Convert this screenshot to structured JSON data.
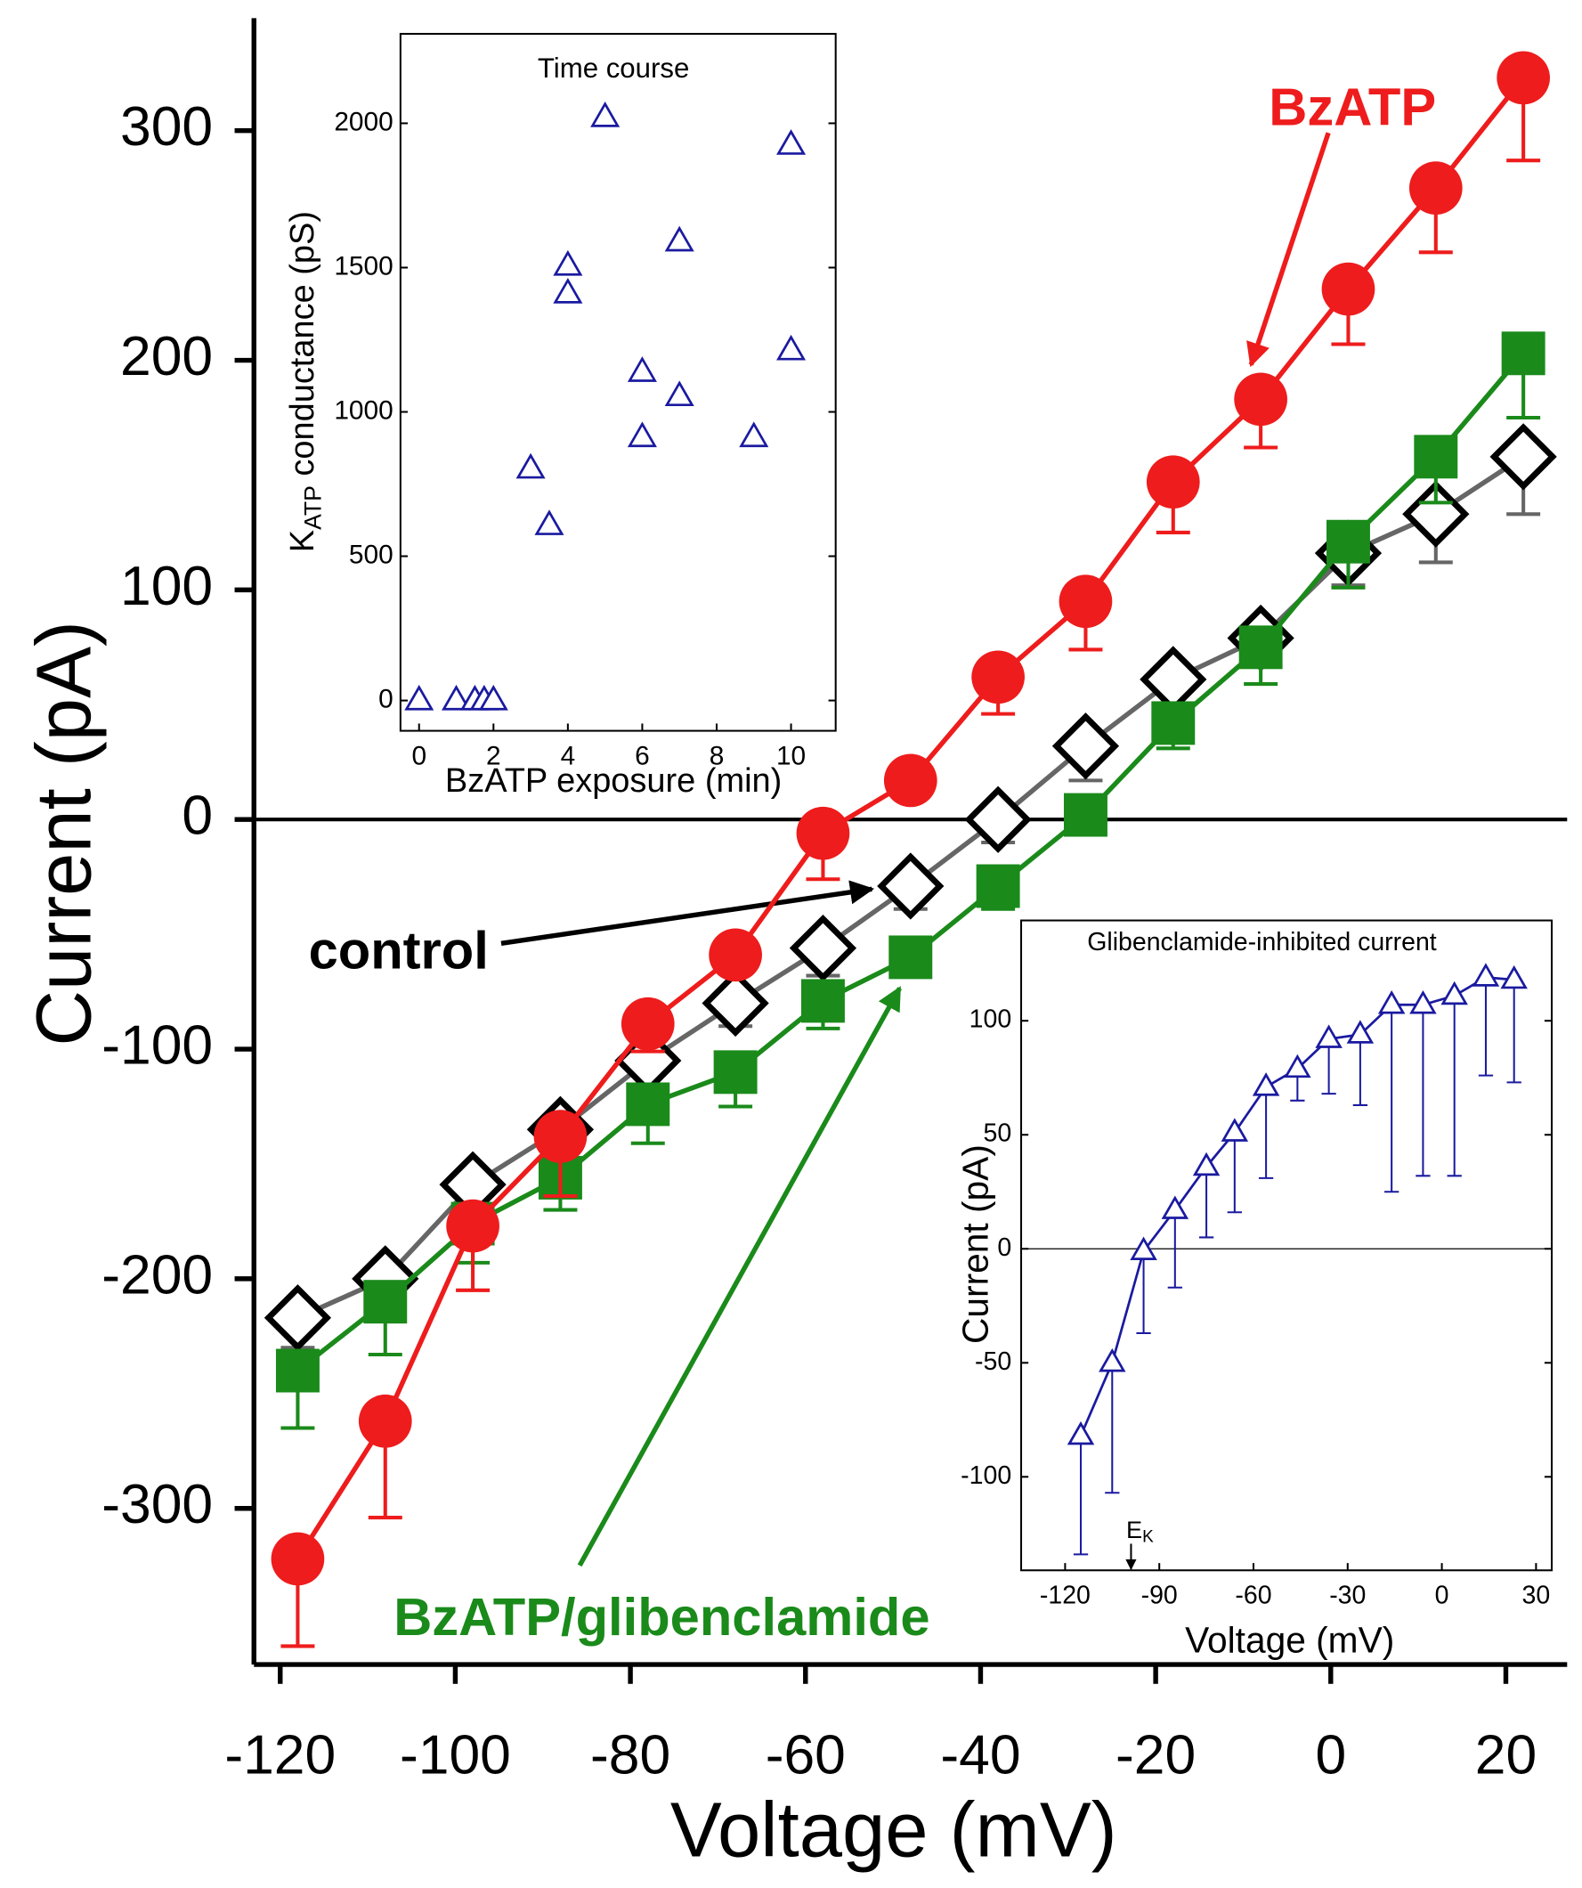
{
  "chart_data": [
    {
      "type": "line",
      "xlabel": "Voltage (mV)",
      "ylabel": "Current (pA)",
      "x": [
        -118,
        -108,
        -98,
        -88,
        -78,
        -68,
        -58,
        -48,
        -38,
        -28,
        -18,
        -8,
        2,
        12,
        22
      ],
      "xlim": [
        -123,
        27
      ],
      "ylim": [
        -368,
        349
      ],
      "xticks": [
        -120,
        -100,
        -80,
        -60,
        -40,
        -20,
        0,
        20
      ],
      "yticks": [
        -300,
        -200,
        -100,
        0,
        100,
        200,
        300
      ],
      "series": [
        {
          "name": "BzATP",
          "color": "#ee1c1c",
          "line_color": "#ee1c1c",
          "marker": "circle",
          "values": [
            -322,
            -262,
            -177,
            -138,
            -89,
            -59,
            -6,
            17,
            62,
            95,
            147,
            183,
            231,
            275,
            323
          ],
          "errors": [
            38,
            42,
            28,
            26,
            12,
            5,
            20,
            8,
            16,
            21,
            22,
            21,
            24,
            28,
            36
          ]
        },
        {
          "name": "control",
          "color": "#000000",
          "line_color": "#666666",
          "marker": "diamond",
          "values": [
            -217,
            -200,
            -159,
            -135,
            -105,
            -80,
            -56,
            -29,
            0,
            32,
            61,
            79,
            116,
            133,
            158
          ],
          "errors": [
            13,
            12,
            15,
            14,
            12,
            10,
            12,
            10,
            10,
            15,
            15,
            12,
            14,
            21,
            25
          ]
        },
        {
          "name": "BzATP/glibenclamide",
          "color": "#1a8a1a",
          "line_color": "#1a8a1a",
          "marker": "square",
          "values": [
            -240,
            -210,
            -176,
            -156,
            -124,
            -110,
            -79,
            -60,
            -29,
            2,
            42,
            75,
            121,
            158,
            203
          ],
          "errors": [
            25,
            23,
            17,
            14,
            17,
            15,
            12,
            5,
            10,
            3,
            11,
            16,
            20,
            20,
            28
          ]
        }
      ]
    },
    {
      "type": "scatter",
      "title": "Time course",
      "xlabel": "BzATP exposure (min)",
      "ylabel": {
        "main": "K",
        "sub": "ATP",
        "rest": " conductance (pS)"
      },
      "x": [
        0,
        1,
        1.5,
        1.75,
        2,
        3,
        3.5,
        4,
        4,
        5,
        6,
        6,
        7,
        7,
        9,
        10,
        10
      ],
      "xlim": [
        -0.5,
        11.2
      ],
      "ylim": [
        -105,
        2310
      ],
      "xticks": [
        0,
        2,
        4,
        6,
        8,
        10
      ],
      "yticks": [
        0,
        500,
        1000,
        1500,
        2000
      ],
      "series": [
        {
          "color": "#1a1aa0",
          "marker": "triangle",
          "values": [
            0,
            0,
            0,
            0,
            0,
            803,
            607,
            1506,
            1410,
            2021,
            1138,
            912,
            1590,
            1054,
            912,
            1925,
            1213
          ]
        }
      ]
    },
    {
      "type": "line",
      "title": "Glibenclamide-inhibited current",
      "xlabel": "Voltage (mV)",
      "ylabel": "Current (pA)",
      "x": [
        -115,
        -105,
        -95,
        -85,
        -75,
        -66,
        -56,
        -46,
        -36,
        -26,
        -16,
        -6,
        4,
        14,
        23
      ],
      "xlim": [
        -134,
        35
      ],
      "ylim": [
        -141,
        144
      ],
      "xticks": [
        -120,
        -90,
        -60,
        -30,
        0,
        30
      ],
      "yticks": [
        -100,
        -50,
        0,
        50,
        100
      ],
      "annotations": [
        {
          "text": "E",
          "sub": "K",
          "x": -99
        }
      ],
      "series": [
        {
          "color": "#1a1aa0",
          "line_color": "#1a1aa0",
          "marker": "triangle",
          "values": [
            -82,
            -50,
            -1,
            17,
            36,
            51,
            71,
            79,
            92,
            94,
            107,
            107,
            111,
            119,
            118
          ],
          "errors": [
            52,
            57,
            36,
            34,
            31,
            35,
            40,
            14,
            24,
            31,
            82,
            75,
            79,
            43,
            45
          ]
        }
      ]
    }
  ]
}
